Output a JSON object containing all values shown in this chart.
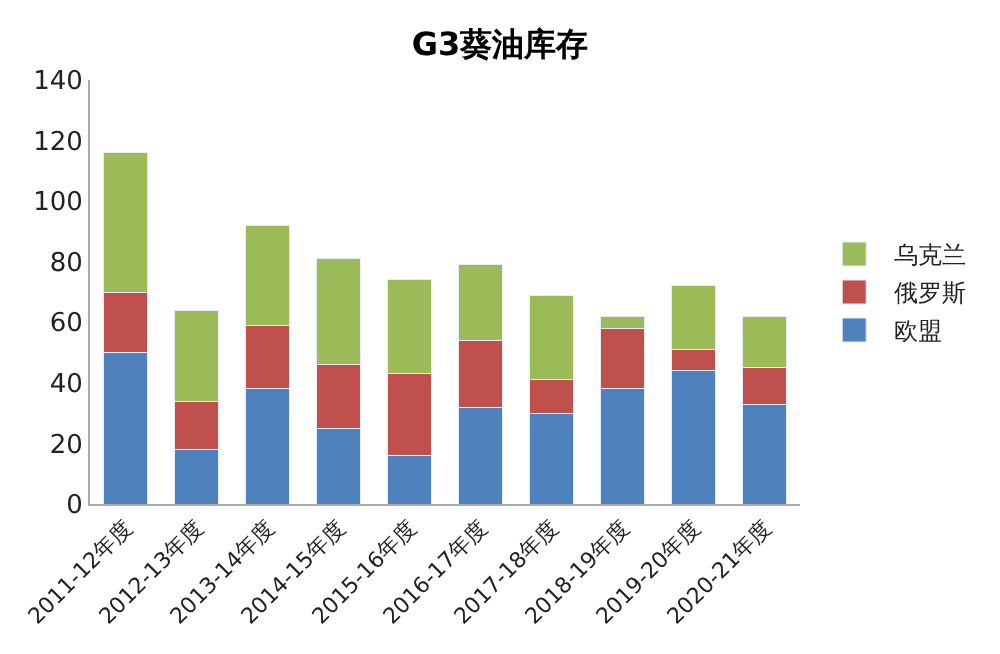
{
  "chart_data": {
    "type": "bar",
    "title": "G3葵油库存",
    "stacked": true,
    "categories": [
      "2011-12年度",
      "2012-13年度",
      "2013-14年度",
      "2014-15年度",
      "2015-16年度",
      "2016-17年度",
      "2017-18年度",
      "2018-19年度",
      "2019-20年度",
      "2020-21年度"
    ],
    "series": [
      {
        "name": "欧盟",
        "color": "#4f81bd",
        "values": [
          50,
          18,
          38,
          25,
          16,
          32,
          30,
          38,
          44,
          33
        ]
      },
      {
        "name": "俄罗斯",
        "color": "#c0504d",
        "values": [
          20,
          16,
          21,
          21,
          27,
          22,
          11,
          20,
          7,
          12
        ]
      },
      {
        "name": "乌克兰",
        "color": "#9bbb59",
        "values": [
          46,
          30,
          33,
          35,
          31,
          25,
          28,
          4,
          21,
          17
        ]
      }
    ],
    "ylim": [
      0,
      140
    ],
    "yticks": [
      0,
      20,
      40,
      60,
      80,
      100,
      120,
      140
    ],
    "grid": false,
    "legend": "right"
  }
}
